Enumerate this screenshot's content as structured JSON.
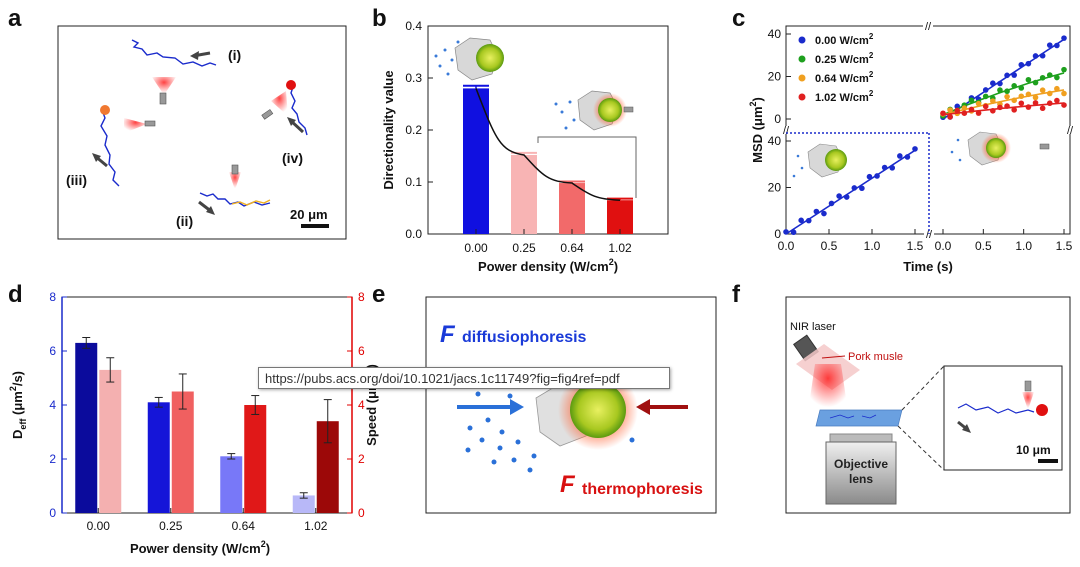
{
  "panels": {
    "a": "a",
    "b": "b",
    "c": "c",
    "d": "d",
    "e": "e",
    "f": "f"
  },
  "tooltip_url": "https://pubs.acs.org/doi/10.1021/jacs.1c11749?fig=fig4ref=pdf",
  "panel_a": {
    "labels": [
      "(i)",
      "(ii)",
      "(iii)",
      "(iv)"
    ],
    "scalebar": "20 μm"
  },
  "panel_e": {
    "f1": "F",
    "f1_sub": "diffusiophoresis",
    "f2": "F",
    "f2_sub": "thermophoresis"
  },
  "panel_f": {
    "laser": "NIR laser",
    "tissue": "Pork musle",
    "objective1": "Objective",
    "objective2": "lens",
    "scalebar": "10 μm"
  },
  "colors": {
    "blue": "#1a2bcc",
    "red": "#e00000",
    "green": "#1ea01e",
    "orange": "#f0a020"
  },
  "chart_data": [
    {
      "id": "b",
      "type": "bar",
      "categories": [
        "0.00",
        "0.25",
        "0.64",
        "1.02"
      ],
      "values": [
        0.28,
        0.152,
        0.098,
        0.065
      ],
      "errors": [
        0.005,
        0.004,
        0.003,
        0.003
      ],
      "bar_colors": [
        "#1010e0",
        "#f8b4b4",
        "#f26a6a",
        "#e01010"
      ],
      "fit_line": true,
      "xlabel": "Power density (W/cm",
      "xlabel_sup": "2",
      "xlabel_end": ")",
      "ylabel": "Directionality value",
      "ylim": [
        0,
        0.4
      ],
      "yticks": [
        "0.0",
        "0.1",
        "0.2",
        "0.3",
        "0.4"
      ]
    },
    {
      "id": "c",
      "type": "line",
      "xlabel": "Time (s)",
      "ylabel": "MSD (μm",
      "ylabel_sup": "2",
      "ylabel_end": ")",
      "x": [
        0.0,
        0.5,
        1.0,
        1.5
      ],
      "xtick_left": [
        "0.0",
        "0.5",
        "1.0",
        "1.5"
      ],
      "xtick_right": [
        "0.0",
        "0.5",
        "1.0",
        "1.5"
      ],
      "ytick_bottom": [
        "0",
        "20",
        "40"
      ],
      "ytick_top": [
        "0",
        "20",
        "40"
      ],
      "legend": [
        "0.00 W/cm",
        "0.25 W/cm",
        "0.64 W/cm",
        "1.02 W/cm"
      ],
      "legend_sup": "2",
      "series": [
        {
          "name": "0.00 W/cm2",
          "color": "#1a2bcc",
          "slope_left": 24,
          "slope_right": 25
        },
        {
          "name": "0.25 W/cm2",
          "color": "#1ea01e",
          "slope_right": 16
        },
        {
          "name": "0.64 W/cm2",
          "color": "#f0a020",
          "slope_right": 9.5
        },
        {
          "name": "1.02 W/cm2",
          "color": "#e02020",
          "slope_right": 4.5
        }
      ],
      "ylim": [
        0,
        40
      ],
      "xlim": [
        0,
        1.5
      ]
    },
    {
      "id": "d",
      "type": "bar",
      "categories": [
        "0.00",
        "0.25",
        "0.64",
        "1.02"
      ],
      "series": [
        {
          "name": "Deff",
          "values": [
            6.3,
            4.1,
            2.1,
            0.65
          ],
          "errors": [
            0.2,
            0.18,
            0.1,
            0.1
          ],
          "colors": [
            "#0b0b9c",
            "#1515d8",
            "#7878f8",
            "#b8b8f8"
          ]
        },
        {
          "name": "Speed",
          "values": [
            5.3,
            4.5,
            4.0,
            3.4
          ],
          "errors": [
            0.45,
            0.65,
            0.35,
            0.8
          ],
          "colors": [
            "#f4b0b0",
            "#f06060",
            "#e01818",
            "#9c0808"
          ]
        }
      ],
      "xlabel": "Power density (W/cm",
      "xlabel_sup": "2",
      "xlabel_end": ")",
      "ylabel_left": "D",
      "ylabel_left_sub": "eff",
      "ylabel_left_end": " (μm",
      "ylabel_left_sup": "2",
      "ylabel_left_tail": "/s)",
      "ylabel_right": "Speed (μm/s)",
      "ylim_left": [
        0,
        8
      ],
      "ylim_right": [
        0,
        8
      ],
      "yticks": [
        "0",
        "2",
        "4",
        "6",
        "8"
      ]
    }
  ]
}
